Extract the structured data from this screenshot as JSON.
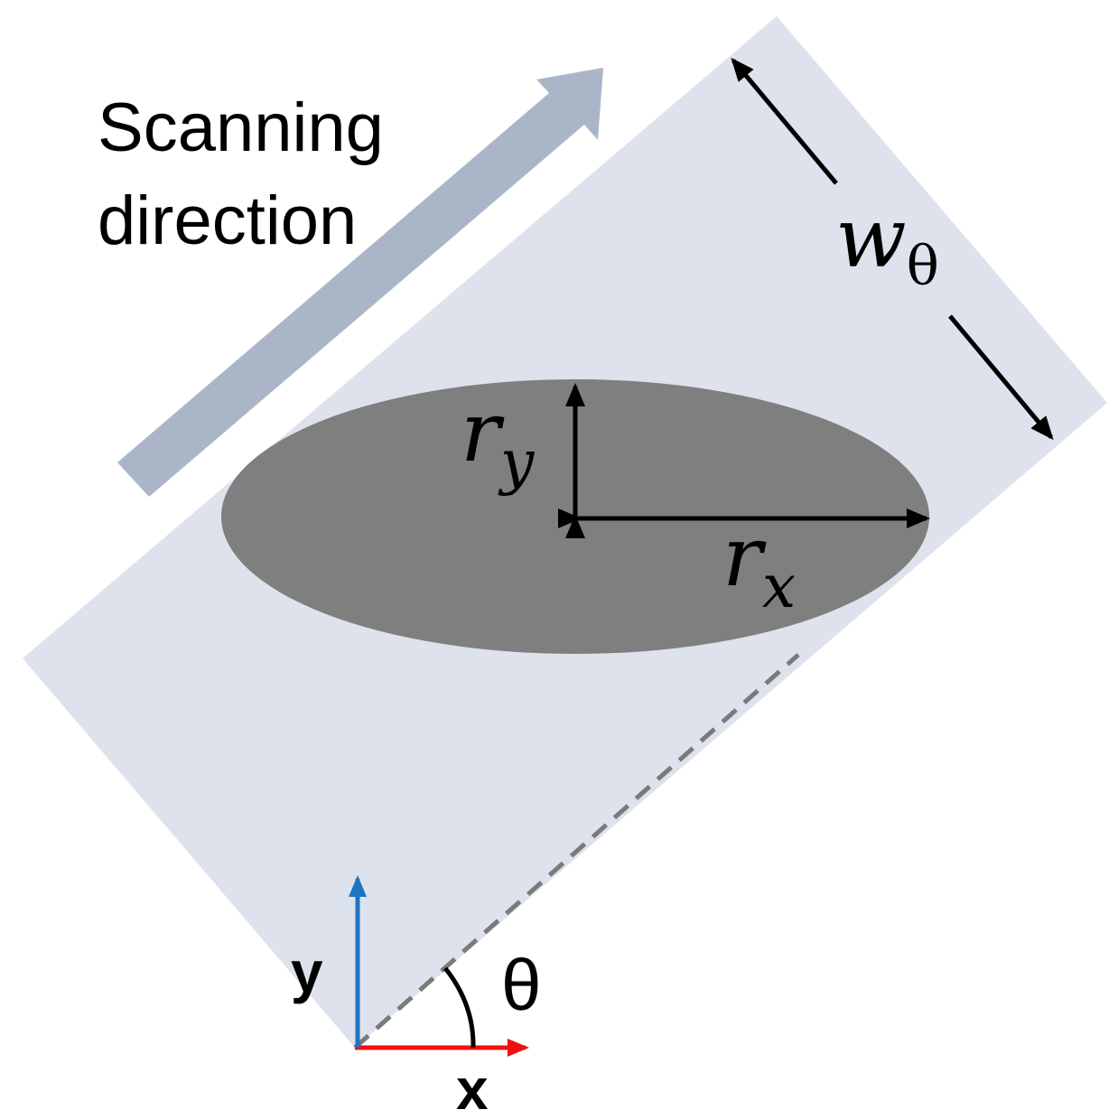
{
  "scan_label": {
    "line1": "Scanning",
    "line2": "direction"
  },
  "width_label": {
    "base": "w",
    "subscript": "θ"
  },
  "ellipse_labels": {
    "ry_base": "r",
    "ry_sub": "y",
    "rx_base": "r",
    "rx_sub": "x"
  },
  "axes": {
    "x_label": "x",
    "y_label": "y",
    "angle_label": "θ"
  },
  "colors": {
    "strip_fill": "#dde2ec",
    "scan_arrow": "#aab6c8",
    "ellipse": "#7f7f7f",
    "dashed_line": "#7a7a7a",
    "x_axis": "#ee1111",
    "y_axis": "#1f74c0",
    "ink": "#000000"
  }
}
